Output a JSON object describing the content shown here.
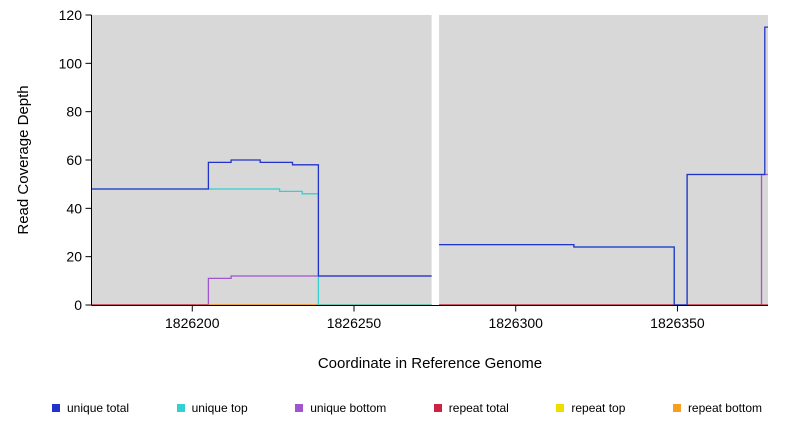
{
  "chart_data": {
    "type": "line",
    "title": "",
    "xlabel": "Coordinate in Reference Genome",
    "ylabel": "Read Coverage Depth",
    "xlim": [
      1826169,
      1826378
    ],
    "ylim": [
      0,
      120
    ],
    "x_ticks": [
      1826200,
      1826250,
      1826300,
      1826350
    ],
    "y_ticks": [
      0,
      20,
      40,
      60,
      80,
      100,
      120
    ],
    "panel_background": "#d8d8d8",
    "masked_region": {
      "start": 1826274,
      "end": 1826276.3
    },
    "draw_order": [
      4,
      2,
      3,
      5,
      1,
      0
    ],
    "series": [
      {
        "name": "unique total",
        "color": "#2233cc",
        "paths": [
          [
            [
              1826169,
              48
            ],
            [
              1826205,
              48
            ],
            [
              1826205,
              59
            ],
            [
              1826212,
              59
            ],
            [
              1826212,
              60
            ],
            [
              1826221,
              60
            ],
            [
              1826221,
              59
            ],
            [
              1826231,
              59
            ],
            [
              1826231,
              58
            ],
            [
              1826239,
              58
            ],
            [
              1826239,
              12
            ],
            [
              1826274,
              12
            ]
          ],
          [
            [
              1826276.3,
              25
            ],
            [
              1826318,
              25
            ],
            [
              1826318,
              24
            ],
            [
              1826349,
              24
            ],
            [
              1826349,
              0
            ],
            [
              1826353,
              0
            ],
            [
              1826353,
              54
            ],
            [
              1826377,
              54
            ],
            [
              1826377,
              115
            ],
            [
              1826378,
              115
            ]
          ]
        ]
      },
      {
        "name": "unique top",
        "color": "#35cfcf",
        "paths": [
          [
            [
              1826169,
              48
            ],
            [
              1826227,
              48
            ],
            [
              1826227,
              47
            ],
            [
              1826234,
              47
            ],
            [
              1826234,
              46
            ],
            [
              1826239,
              46
            ],
            [
              1826239,
              0
            ],
            [
              1826274,
              0
            ]
          ],
          [
            [
              1826276.3,
              25
            ],
            [
              1826318,
              25
            ],
            [
              1826318,
              24
            ],
            [
              1826349,
              24
            ],
            [
              1826349,
              0
            ],
            [
              1826353,
              0
            ],
            [
              1826353,
              54
            ],
            [
              1826377,
              54
            ]
          ]
        ]
      },
      {
        "name": "unique bottom",
        "color": "#a055d0",
        "paths": [
          [
            [
              1826169,
              0
            ],
            [
              1826205,
              0
            ],
            [
              1826205,
              11
            ],
            [
              1826212,
              11
            ],
            [
              1826212,
              12
            ],
            [
              1826274,
              12
            ]
          ],
          [
            [
              1826276.3,
              0
            ],
            [
              1826376,
              0
            ],
            [
              1826376,
              54
            ],
            [
              1826378,
              54
            ]
          ]
        ]
      },
      {
        "name": "repeat total",
        "color": "#cc2244",
        "paths": [
          [
            [
              1826169,
              0
            ],
            [
              1826274,
              0
            ]
          ],
          [
            [
              1826276.3,
              0
            ],
            [
              1826378,
              0
            ]
          ]
        ]
      },
      {
        "name": "repeat top",
        "color": "#eedd00",
        "paths": [
          [
            [
              1826169,
              0
            ],
            [
              1826274,
              0
            ]
          ],
          [
            [
              1826276.3,
              0
            ],
            [
              1826378,
              0
            ]
          ]
        ]
      },
      {
        "name": "repeat bottom",
        "color": "#f5a020",
        "paths": [
          [
            [
              1826205,
              0
            ],
            [
              1826239,
              0
            ]
          ]
        ]
      }
    ]
  }
}
